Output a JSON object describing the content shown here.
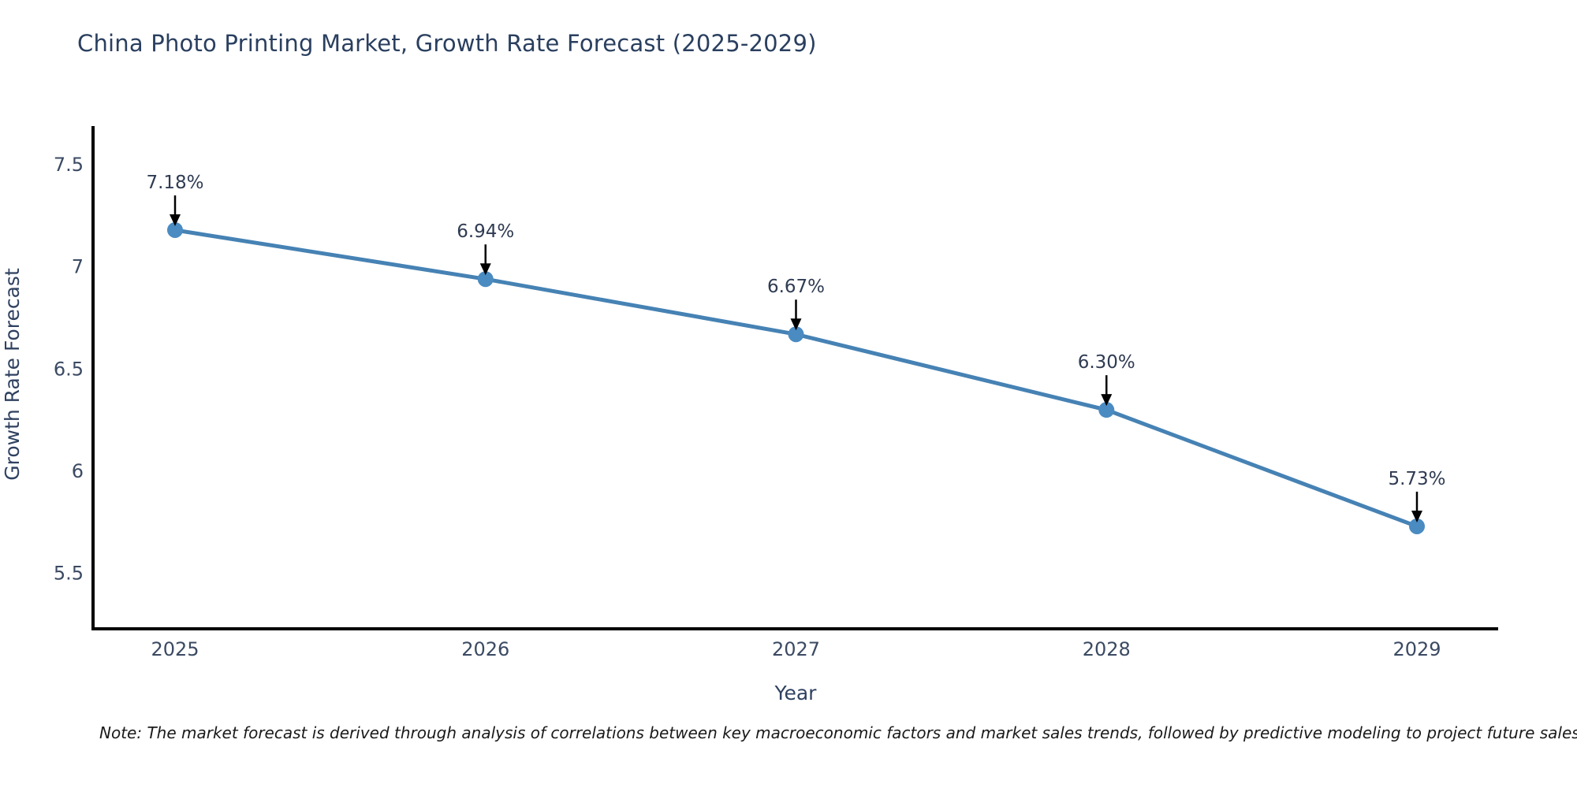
{
  "title": "China Photo Printing Market, Growth Rate Forecast (2025-2029)",
  "note": "Note: The market forecast is derived through analysis of correlations between key macroeconomic factors and market sales trends, followed by predictive modeling to project future sales",
  "chart_data": {
    "type": "line",
    "title": "China Photo Printing Market, Growth Rate Forecast (2025-2029)",
    "categories": [
      "2025",
      "2026",
      "2027",
      "2028",
      "2029"
    ],
    "series": [
      {
        "name": "Growth Rate Forecast",
        "values": [
          7.18,
          6.94,
          6.67,
          6.3,
          5.73
        ]
      }
    ],
    "point_labels": [
      "7.18%",
      "6.94%",
      "6.67%",
      "6.30%",
      "5.73%"
    ],
    "xlabel": "Year",
    "ylabel": "Growth Rate Forecast",
    "ytick_labels": [
      "7.5",
      "7",
      "6.5",
      "6",
      "5.5"
    ],
    "yticks": [
      7.5,
      7.0,
      6.5,
      6.0,
      5.5
    ],
    "ylim": [
      5.2,
      7.7
    ],
    "grid": false,
    "legend": false,
    "annotations_have_arrows": true
  },
  "colors": {
    "line": "#4682b4",
    "marker": "#4a8bc2",
    "arrow": "#000000",
    "title_text": "#2a3f5f",
    "axis_title_text": "#2f4160",
    "tick_text": "#3b4a63",
    "annotation_text": "#2f3b52",
    "axis_line": "#000000",
    "background": "#ffffff"
  }
}
